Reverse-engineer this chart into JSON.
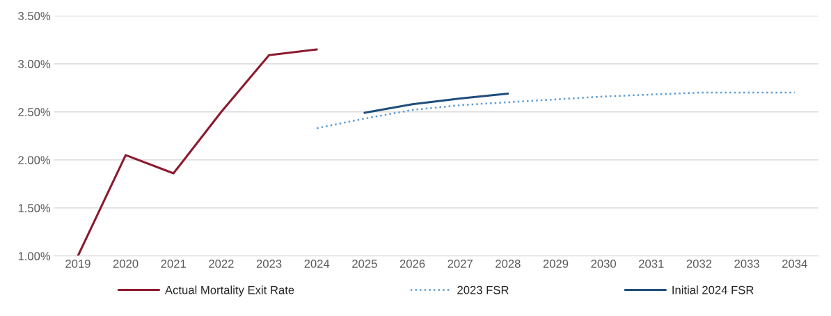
{
  "chart_data": {
    "type": "line",
    "categories": [
      "2019",
      "2020",
      "2021",
      "2022",
      "2023",
      "2024",
      "2025",
      "2026",
      "2027",
      "2028",
      "2029",
      "2030",
      "2031",
      "2032",
      "2033",
      "2034"
    ],
    "series": [
      {
        "name": "Actual Mortality Exit Rate",
        "color": "#8b1a2e",
        "line_style": "solid",
        "values": [
          1.0,
          2.05,
          1.86,
          2.5,
          3.09,
          3.15,
          null,
          null,
          null,
          null,
          null,
          null,
          null,
          null,
          null,
          null
        ]
      },
      {
        "name": "2023 FSR",
        "color": "#5b9bd5",
        "line_style": "dotted",
        "values": [
          null,
          null,
          null,
          null,
          null,
          2.33,
          2.43,
          2.52,
          2.57,
          2.6,
          2.63,
          2.66,
          2.68,
          2.7,
          2.7,
          2.7
        ]
      },
      {
        "name": "Initial 2024 FSR",
        "color": "#1f4e79",
        "line_style": "solid",
        "values": [
          null,
          null,
          null,
          null,
          null,
          null,
          2.49,
          2.58,
          2.64,
          2.69,
          null,
          null,
          null,
          null,
          null,
          null
        ]
      }
    ],
    "ylim": [
      1.0,
      3.5
    ],
    "yticks": [
      {
        "value": 1.0,
        "label": "1.00%"
      },
      {
        "value": 1.5,
        "label": "1.50%"
      },
      {
        "value": 2.0,
        "label": "2.00%"
      },
      {
        "value": 2.5,
        "label": "2.50%"
      },
      {
        "value": 3.0,
        "label": "3.00%"
      },
      {
        "value": 3.5,
        "label": "3.50%"
      }
    ],
    "grid": "y",
    "legend": "bottom",
    "marker": "none"
  }
}
